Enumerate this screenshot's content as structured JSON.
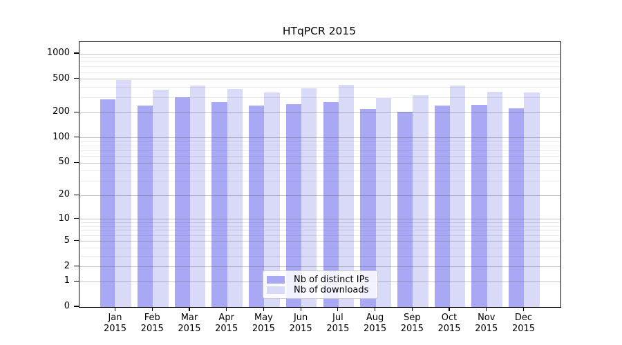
{
  "chart_data": {
    "type": "bar",
    "title": "HTqPCR 2015",
    "xlabel": "",
    "ylabel": "",
    "categories": [
      "Jan",
      "Feb",
      "Mar",
      "Apr",
      "May",
      "Jun",
      "Jul",
      "Aug",
      "Sep",
      "Oct",
      "Nov",
      "Dec"
    ],
    "year_label": "2015",
    "series": [
      {
        "name": "Nb of distinct IPs",
        "color": "#a8a8f5",
        "values": [
          288,
          243,
          307,
          269,
          242,
          254,
          269,
          222,
          206,
          243,
          248,
          227
        ]
      },
      {
        "name": "Nb of downloads",
        "color": "#d9d9f8",
        "values": [
          486,
          373,
          423,
          380,
          346,
          387,
          426,
          301,
          321,
          418,
          352,
          345
        ]
      }
    ],
    "yscale": "log10(value+1)",
    "ytick_values": [
      0,
      1,
      2,
      5,
      10,
      20,
      50,
      100,
      200,
      500,
      1000
    ],
    "ytick_labels": [
      "0",
      "1",
      "2",
      "5",
      "10",
      "20",
      "50",
      "100",
      "200",
      "500",
      "1000"
    ],
    "ylim": [
      0,
      1380
    ],
    "grid": "horizontal major and minor, drawn above bars",
    "legend_position": "lower center",
    "colors": {
      "grid_major": "#b4b4b4",
      "grid_minor": "#e6e6e6",
      "axis": "#000000",
      "legend_border": "#cccccc"
    }
  }
}
